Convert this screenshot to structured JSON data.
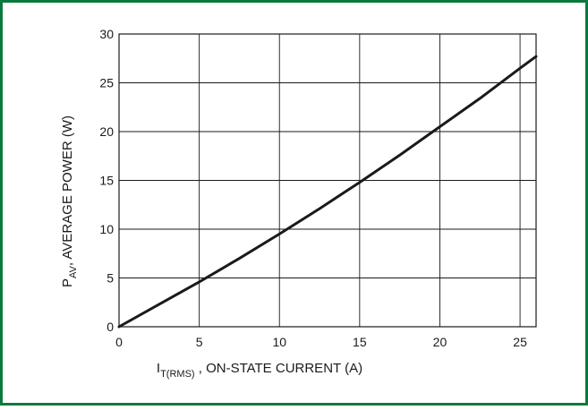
{
  "chart_data": {
    "type": "line",
    "title": "",
    "border_color": "#0a7a3c",
    "line_color": "#1a1a1a",
    "grid": true,
    "xlabel": {
      "main": "I",
      "sub": "T(RMS)",
      "rest": " , ON-STATE CURRENT (A)"
    },
    "ylabel": {
      "main": "P",
      "sub": "AV",
      "rest": ", AVERAGE POWER (W)"
    },
    "xlim": [
      0,
      26
    ],
    "ylim": [
      0,
      30
    ],
    "xticks": [
      0,
      5,
      10,
      15,
      20,
      25
    ],
    "yticks": [
      0,
      5,
      10,
      15,
      20,
      25,
      30
    ],
    "series": [
      {
        "x": [
          0,
          2.5,
          5,
          7.5,
          10,
          12.5,
          15,
          17.5,
          20,
          22.5,
          25,
          26
        ],
        "y": [
          0,
          2.3,
          4.6,
          7.0,
          9.5,
          12.1,
          14.8,
          17.6,
          20.5,
          23.4,
          26.5,
          27.7
        ]
      }
    ]
  }
}
